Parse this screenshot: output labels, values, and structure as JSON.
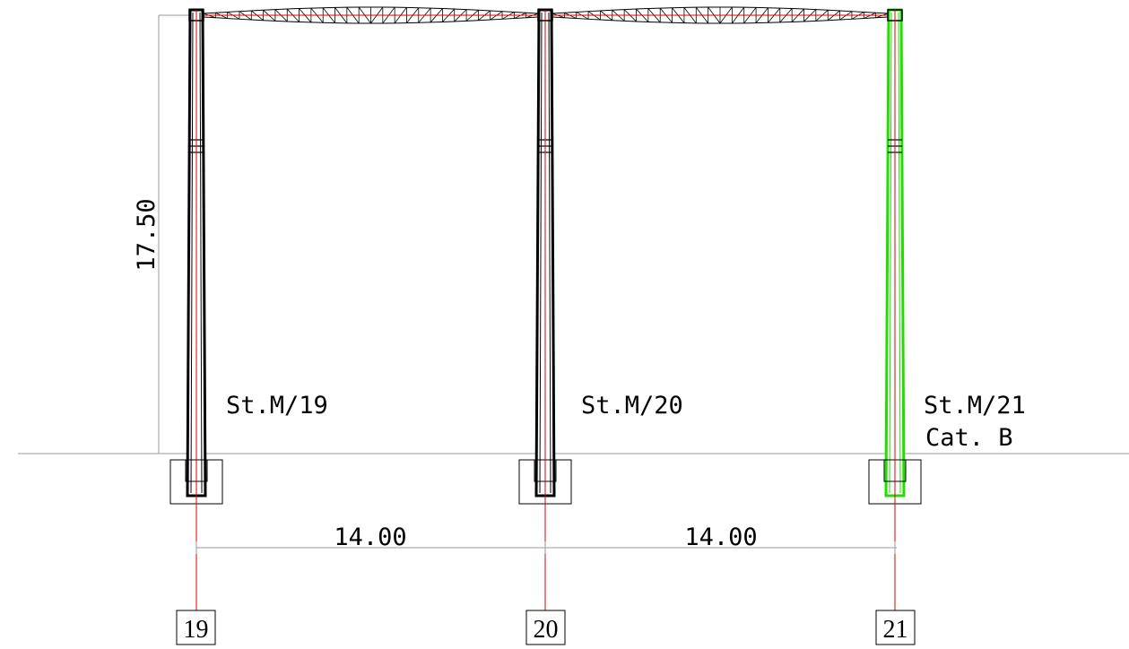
{
  "height_dimension": "17.50",
  "spans": [
    {
      "length": "14.00"
    },
    {
      "length": "14.00"
    }
  ],
  "columns": [
    {
      "grid_label": "19",
      "name": "St.M/19",
      "category": "",
      "highlighted": false
    },
    {
      "grid_label": "20",
      "name": "St.M/20",
      "category": "",
      "highlighted": false
    },
    {
      "grid_label": "21",
      "name": "St.M/21",
      "category": "Cat. B",
      "highlighted": true
    }
  ],
  "colors": {
    "column_outline": "#000000",
    "highlight_outline": "#22dd00",
    "axis": "#dd0000",
    "dimension": "#9a9a9a",
    "ground": "#9a9a9a",
    "truss": "#000000"
  }
}
